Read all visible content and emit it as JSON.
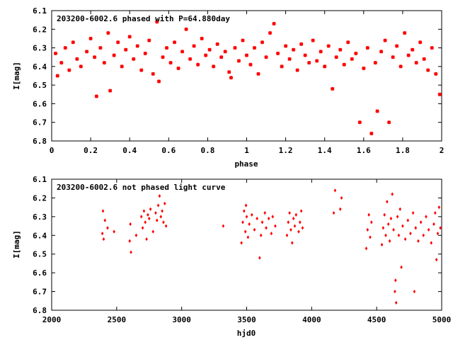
{
  "chart_data": [
    {
      "type": "scatter",
      "title": "203200-6002.6 phased with P=64.880day",
      "xlabel": "phase",
      "ylabel": "I[mag]",
      "xlim": [
        0,
        2
      ],
      "ylim": [
        6.8,
        6.1
      ],
      "y_inverted": true,
      "grid": false,
      "color": "#ff0000",
      "marker": "asterisk",
      "x_ticks": [
        "0",
        "0.2",
        "0.4",
        "0.6",
        "0.8",
        "1",
        "1.2",
        "1.4",
        "1.6",
        "1.8",
        "2"
      ],
      "y_ticks": [
        "6.1",
        "6.2",
        "6.3",
        "6.4",
        "6.5",
        "6.6",
        "6.7",
        "6.8"
      ],
      "points": [
        [
          0.02,
          6.33
        ],
        [
          0.03,
          6.45
        ],
        [
          0.05,
          6.38
        ],
        [
          0.07,
          6.3
        ],
        [
          0.09,
          6.42
        ],
        [
          0.11,
          6.27
        ],
        [
          0.13,
          6.36
        ],
        [
          0.15,
          6.4
        ],
        [
          0.18,
          6.32
        ],
        [
          0.2,
          6.25
        ],
        [
          0.22,
          6.35
        ],
        [
          0.23,
          6.56
        ],
        [
          0.25,
          6.3
        ],
        [
          0.27,
          6.38
        ],
        [
          0.29,
          6.22
        ],
        [
          0.3,
          6.53
        ],
        [
          0.32,
          6.34
        ],
        [
          0.34,
          6.27
        ],
        [
          0.36,
          6.4
        ],
        [
          0.38,
          6.31
        ],
        [
          0.4,
          6.24
        ],
        [
          0.42,
          6.36
        ],
        [
          0.44,
          6.29
        ],
        [
          0.46,
          6.42
        ],
        [
          0.48,
          6.33
        ],
        [
          0.5,
          6.26
        ],
        [
          0.52,
          6.44
        ],
        [
          0.54,
          6.16
        ],
        [
          0.55,
          6.48
        ],
        [
          0.57,
          6.35
        ],
        [
          0.59,
          6.3
        ],
        [
          0.61,
          6.38
        ],
        [
          0.63,
          6.27
        ],
        [
          0.65,
          6.41
        ],
        [
          0.67,
          6.32
        ],
        [
          0.69,
          6.2
        ],
        [
          0.71,
          6.36
        ],
        [
          0.73,
          6.29
        ],
        [
          0.75,
          6.39
        ],
        [
          0.77,
          6.25
        ],
        [
          0.79,
          6.34
        ],
        [
          0.81,
          6.31
        ],
        [
          0.83,
          6.4
        ],
        [
          0.85,
          6.28
        ],
        [
          0.87,
          6.35
        ],
        [
          0.89,
          6.32
        ],
        [
          0.91,
          6.43
        ],
        [
          0.92,
          6.46
        ],
        [
          0.94,
          6.3
        ],
        [
          0.96,
          6.37
        ],
        [
          0.98,
          6.26
        ],
        [
          1.0,
          6.34
        ],
        [
          1.02,
          6.39
        ],
        [
          1.04,
          6.3
        ],
        [
          1.06,
          6.44
        ],
        [
          1.08,
          6.27
        ],
        [
          1.1,
          6.35
        ],
        [
          1.12,
          6.22
        ],
        [
          1.14,
          6.17
        ],
        [
          1.16,
          6.33
        ],
        [
          1.18,
          6.4
        ],
        [
          1.2,
          6.29
        ],
        [
          1.22,
          6.36
        ],
        [
          1.24,
          6.31
        ],
        [
          1.26,
          6.42
        ],
        [
          1.28,
          6.28
        ],
        [
          1.3,
          6.34
        ],
        [
          1.32,
          6.38
        ],
        [
          1.34,
          6.26
        ],
        [
          1.36,
          6.37
        ],
        [
          1.38,
          6.32
        ],
        [
          1.4,
          6.4
        ],
        [
          1.42,
          6.29
        ],
        [
          1.44,
          6.52
        ],
        [
          1.46,
          6.35
        ],
        [
          1.48,
          6.31
        ],
        [
          1.5,
          6.39
        ],
        [
          1.52,
          6.27
        ],
        [
          1.54,
          6.36
        ],
        [
          1.56,
          6.33
        ],
        [
          1.58,
          6.7
        ],
        [
          1.6,
          6.41
        ],
        [
          1.62,
          6.3
        ],
        [
          1.64,
          6.76
        ],
        [
          1.66,
          6.38
        ],
        [
          1.67,
          6.64
        ],
        [
          1.69,
          6.32
        ],
        [
          1.71,
          6.26
        ],
        [
          1.73,
          6.7
        ],
        [
          1.75,
          6.35
        ],
        [
          1.77,
          6.29
        ],
        [
          1.79,
          6.4
        ],
        [
          1.81,
          6.22
        ],
        [
          1.83,
          6.34
        ],
        [
          1.85,
          6.31
        ],
        [
          1.87,
          6.38
        ],
        [
          1.89,
          6.27
        ],
        [
          1.91,
          6.36
        ],
        [
          1.93,
          6.42
        ],
        [
          1.95,
          6.3
        ],
        [
          1.97,
          6.44
        ],
        [
          1.99,
          6.55
        ]
      ]
    },
    {
      "type": "scatter",
      "title": "203200-6002.6 not phased light curve",
      "xlabel": "hjd0",
      "ylabel": "I[mag]",
      "xlim": [
        2000,
        5000
      ],
      "ylim": [
        6.8,
        6.1
      ],
      "y_inverted": true,
      "grid": false,
      "color": "#ff0000",
      "marker": "diamond",
      "x_ticks": [
        "2000",
        "2500",
        "3000",
        "3500",
        "4000",
        "4500",
        "5000"
      ],
      "y_ticks": [
        "6.1",
        "6.2",
        "6.3",
        "6.4",
        "6.5",
        "6.6",
        "6.7",
        "6.8"
      ],
      "points": [
        [
          2390,
          6.39
        ],
        [
          2395,
          6.27
        ],
        [
          2400,
          6.42
        ],
        [
          2410,
          6.32
        ],
        [
          2430,
          6.36
        ],
        [
          2480,
          6.38
        ],
        [
          2600,
          6.43
        ],
        [
          2605,
          6.34
        ],
        [
          2610,
          6.49
        ],
        [
          2650,
          6.4
        ],
        [
          2690,
          6.3
        ],
        [
          2700,
          6.36
        ],
        [
          2710,
          6.27
        ],
        [
          2720,
          6.33
        ],
        [
          2730,
          6.42
        ],
        [
          2740,
          6.29
        ],
        [
          2750,
          6.31
        ],
        [
          2760,
          6.26
        ],
        [
          2780,
          6.38
        ],
        [
          2800,
          6.28
        ],
        [
          2810,
          6.32
        ],
        [
          2820,
          6.24
        ],
        [
          2830,
          6.19
        ],
        [
          2840,
          6.3
        ],
        [
          2850,
          6.27
        ],
        [
          2860,
          6.33
        ],
        [
          2870,
          6.23
        ],
        [
          2880,
          6.35
        ],
        [
          3320,
          6.35
        ],
        [
          3460,
          6.44
        ],
        [
          3470,
          6.33
        ],
        [
          3480,
          6.27
        ],
        [
          3490,
          6.38
        ],
        [
          3495,
          6.24
        ],
        [
          3500,
          6.3
        ],
        [
          3510,
          6.41
        ],
        [
          3520,
          6.34
        ],
        [
          3540,
          6.29
        ],
        [
          3560,
          6.37
        ],
        [
          3580,
          6.31
        ],
        [
          3600,
          6.52
        ],
        [
          3610,
          6.4
        ],
        [
          3620,
          6.33
        ],
        [
          3640,
          6.28
        ],
        [
          3650,
          6.36
        ],
        [
          3670,
          6.31
        ],
        [
          3690,
          6.39
        ],
        [
          3700,
          6.3
        ],
        [
          3720,
          6.35
        ],
        [
          3810,
          6.4
        ],
        [
          3820,
          6.33
        ],
        [
          3830,
          6.28
        ],
        [
          3840,
          6.37
        ],
        [
          3850,
          6.44
        ],
        [
          3860,
          6.31
        ],
        [
          3870,
          6.35
        ],
        [
          3880,
          6.29
        ],
        [
          3900,
          6.38
        ],
        [
          3910,
          6.33
        ],
        [
          3920,
          6.27
        ],
        [
          3930,
          6.36
        ],
        [
          4170,
          6.28
        ],
        [
          4180,
          6.16
        ],
        [
          4220,
          6.26
        ],
        [
          4230,
          6.2
        ],
        [
          4420,
          6.47
        ],
        [
          4430,
          6.37
        ],
        [
          4440,
          6.29
        ],
        [
          4450,
          6.41
        ],
        [
          4460,
          6.33
        ],
        [
          4540,
          6.45
        ],
        [
          4550,
          6.36
        ],
        [
          4560,
          6.29
        ],
        [
          4570,
          6.4
        ],
        [
          4580,
          6.22
        ],
        [
          4590,
          6.34
        ],
        [
          4600,
          6.43
        ],
        [
          4610,
          6.31
        ],
        [
          4620,
          6.18
        ],
        [
          4630,
          6.37
        ],
        [
          4640,
          6.7
        ],
        [
          4645,
          6.64
        ],
        [
          4650,
          6.76
        ],
        [
          4660,
          6.3
        ],
        [
          4670,
          6.4
        ],
        [
          4680,
          6.26
        ],
        [
          4690,
          6.57
        ],
        [
          4700,
          6.35
        ],
        [
          4720,
          6.42
        ],
        [
          4740,
          6.32
        ],
        [
          4760,
          6.39
        ],
        [
          4780,
          6.28
        ],
        [
          4790,
          6.7
        ],
        [
          4800,
          6.36
        ],
        [
          4820,
          6.43
        ],
        [
          4840,
          6.33
        ],
        [
          4860,
          6.4
        ],
        [
          4880,
          6.3
        ],
        [
          4900,
          6.37
        ],
        [
          4920,
          6.44
        ],
        [
          4940,
          6.34
        ],
        [
          4950,
          6.28
        ],
        [
          4960,
          6.53
        ],
        [
          4970,
          6.39
        ],
        [
          4980,
          6.25
        ],
        [
          4990,
          6.36
        ]
      ]
    }
  ]
}
